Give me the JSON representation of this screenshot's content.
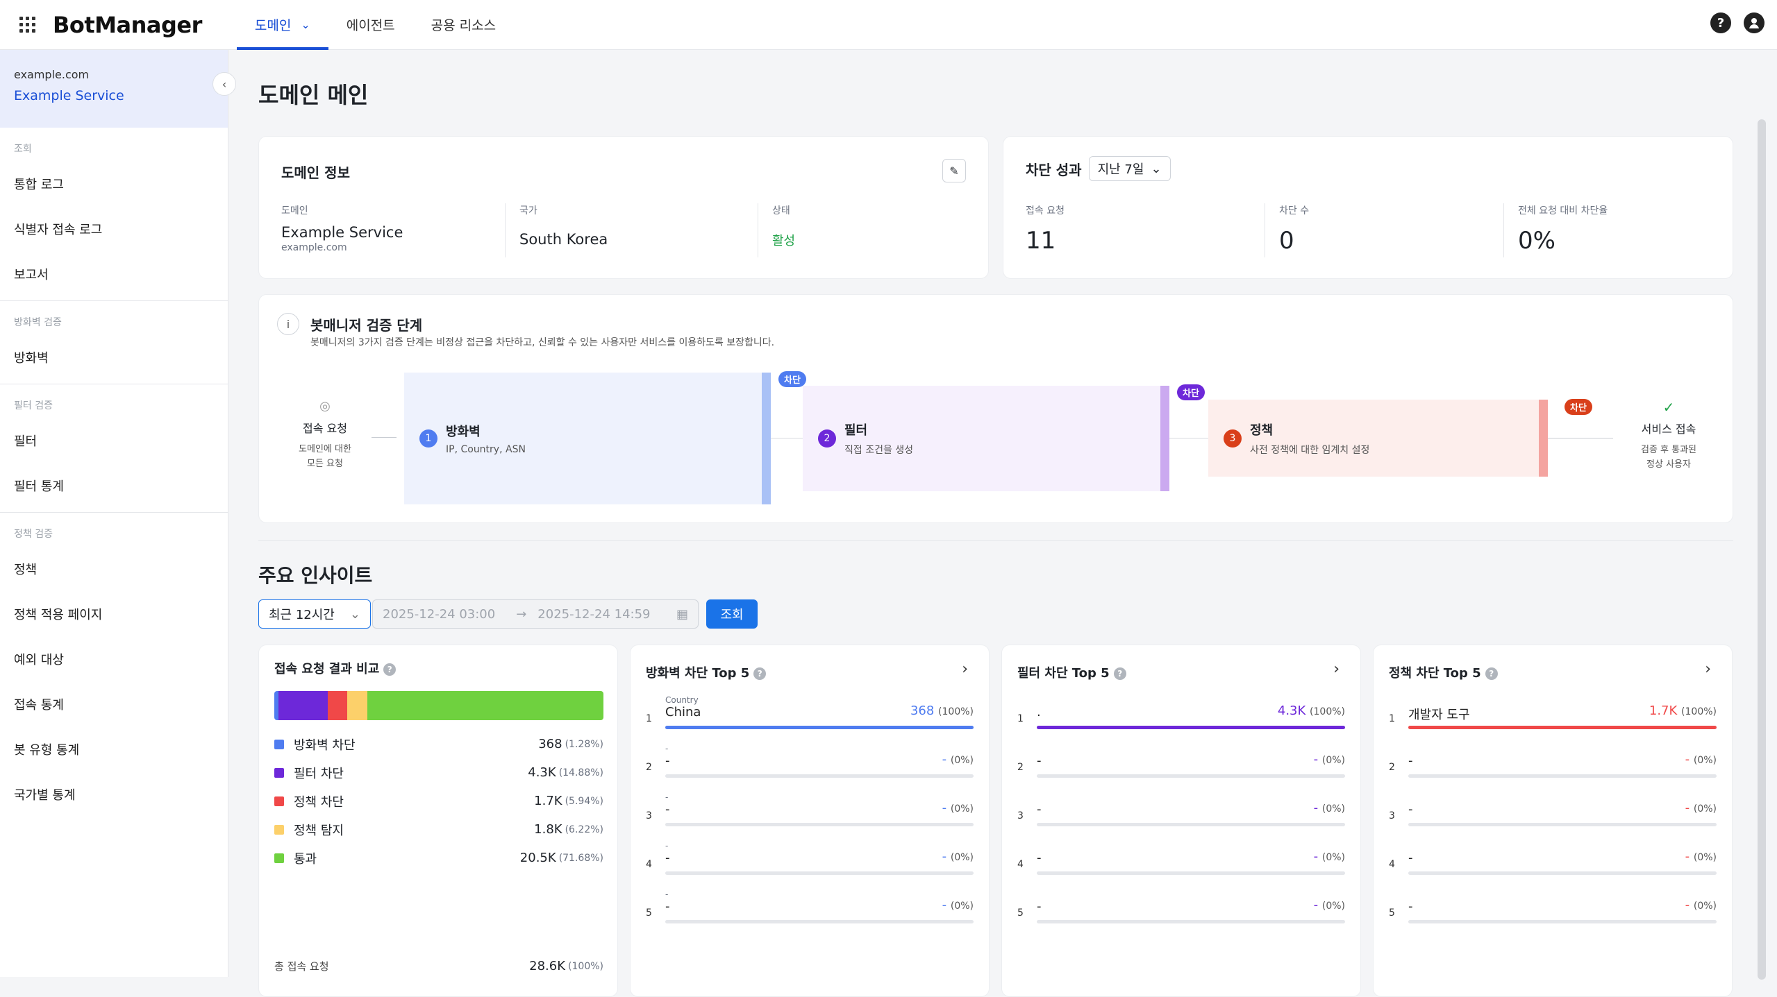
{
  "app": {
    "name": "BotManager"
  },
  "nav": {
    "tabs": [
      {
        "label": "도메인"
      },
      {
        "label": "에이전트"
      },
      {
        "label": "공용 리소스"
      }
    ]
  },
  "sidebar": {
    "domain": "example.com",
    "service": "Example Service",
    "sections": [
      {
        "title": "조회",
        "items": [
          "통합 로그",
          "식별자 접속 로그",
          "보고서"
        ]
      },
      {
        "title": "방화벽 검증",
        "items": [
          "방화벽"
        ]
      },
      {
        "title": "필터 검증",
        "items": [
          "필터",
          "필터 통계"
        ]
      },
      {
        "title": "정책 검증",
        "items": [
          "정책",
          "정책 적용 페이지",
          "예외 대상",
          "접속 통계",
          "봇 유형 통계",
          "국가별 통계"
        ]
      }
    ]
  },
  "page": {
    "title": "도메인 메인"
  },
  "domain_info": {
    "title": "도메인 정보",
    "domain_label": "도메인",
    "domain_name": "Example Service",
    "domain_host": "example.com",
    "country_label": "국가",
    "country": "South Korea",
    "status_label": "상태",
    "status": "활성",
    "status_color": "#22a34a"
  },
  "block_perf": {
    "title": "차단 성과",
    "period": "지난 7일",
    "metrics": [
      {
        "label": "접속 요청",
        "value": "11"
      },
      {
        "label": "차단 수",
        "value": "0"
      },
      {
        "label": "전체 요청 대비 차단율",
        "value": "0%"
      }
    ]
  },
  "flow": {
    "title": "봇매니저 검증 단계",
    "description": "봇매니저의 3가지 검증 단계는 비정상 접근을 차단하고, 신뢰할 수 있는 사용자만 서비스를 이용하도록 보장합니다.",
    "start": {
      "title": "접속 요청",
      "sub1": "도메인에 대한",
      "sub2": "모든 요청"
    },
    "end": {
      "title": "서비스 접속",
      "sub1": "검증 후 통과된",
      "sub2": "정상 사용자"
    },
    "block_label": "차단",
    "steps": [
      {
        "num": "1",
        "title": "방화벽",
        "sub": "IP, Country, ASN",
        "color": "#4f7cf0",
        "bg": "#eef2fd",
        "bar": "#a9c1f6"
      },
      {
        "num": "2",
        "title": "필터",
        "sub": "직접 조건을 생성",
        "color": "#6d28d9",
        "bg": "#f6f0fd",
        "bar": "#cba9f0"
      },
      {
        "num": "3",
        "title": "정책",
        "sub": "사전 정책에 대한 임계치 설정",
        "color": "#d93f1a",
        "bg": "#fdeeec",
        "bar": "#f4a4a0"
      }
    ]
  },
  "insights": {
    "title": "주요 인사이트",
    "range": "최근 12시간",
    "from": "2025-12-24 03:00",
    "to": "2025-12-24 14:59",
    "search": "조회"
  },
  "compare": {
    "title": "접속 요청 결과 비교",
    "items": [
      {
        "label": "방화벽 차단",
        "value": "368",
        "pct": "(1.28%)",
        "share": 1.28,
        "color": "#4f7cf0"
      },
      {
        "label": "필터 차단",
        "value": "4.3K",
        "pct": "(14.88%)",
        "share": 14.88,
        "color": "#6d28d9"
      },
      {
        "label": "정책 차단",
        "value": "1.7K",
        "pct": "(5.94%)",
        "share": 5.94,
        "color": "#f04848"
      },
      {
        "label": "정책 탐지",
        "value": "1.8K",
        "pct": "(6.22%)",
        "share": 6.22,
        "color": "#fcd06a"
      },
      {
        "label": "통과",
        "value": "20.5K",
        "pct": "(71.68%)",
        "share": 71.68,
        "color": "#6fd13f"
      }
    ],
    "total_label": "총 접속 요청",
    "total_value": "28.6K",
    "total_pct": "(100%)"
  },
  "top5": [
    {
      "title": "방화벽 차단 Top 5",
      "color": "#4f7cf0",
      "rows": [
        {
          "rank": "1",
          "sub": "Country",
          "name": "China",
          "value": "368",
          "pct": "(100%)",
          "fill": 1
        },
        {
          "rank": "2",
          "sub": "-",
          "name": "-",
          "value": "-",
          "pct": "(0%)",
          "fill": 0
        },
        {
          "rank": "3",
          "sub": "-",
          "name": "-",
          "value": "-",
          "pct": "(0%)",
          "fill": 0
        },
        {
          "rank": "4",
          "sub": "-",
          "name": "-",
          "value": "-",
          "pct": "(0%)",
          "fill": 0
        },
        {
          "rank": "5",
          "sub": "-",
          "name": "-",
          "value": "-",
          "pct": "(0%)",
          "fill": 0
        }
      ]
    },
    {
      "title": "필터 차단 Top 5",
      "color": "#6d28d9",
      "rows": [
        {
          "rank": "1",
          "sub": "",
          "name": ".",
          "value": "4.3K",
          "pct": "(100%)",
          "fill": 1
        },
        {
          "rank": "2",
          "sub": "",
          "name": "-",
          "value": "-",
          "pct": "(0%)",
          "fill": 0
        },
        {
          "rank": "3",
          "sub": "",
          "name": "-",
          "value": "-",
          "pct": "(0%)",
          "fill": 0
        },
        {
          "rank": "4",
          "sub": "",
          "name": "-",
          "value": "-",
          "pct": "(0%)",
          "fill": 0
        },
        {
          "rank": "5",
          "sub": "",
          "name": "-",
          "value": "-",
          "pct": "(0%)",
          "fill": 0
        }
      ]
    },
    {
      "title": "정책 차단 Top 5",
      "color": "#f04848",
      "rows": [
        {
          "rank": "1",
          "sub": "",
          "name": "개발자 도구",
          "value": "1.7K",
          "pct": "(100%)",
          "fill": 1
        },
        {
          "rank": "2",
          "sub": "",
          "name": "-",
          "value": "-",
          "pct": "(0%)",
          "fill": 0
        },
        {
          "rank": "3",
          "sub": "",
          "name": "-",
          "value": "-",
          "pct": "(0%)",
          "fill": 0
        },
        {
          "rank": "4",
          "sub": "",
          "name": "-",
          "value": "-",
          "pct": "(0%)",
          "fill": 0
        },
        {
          "rank": "5",
          "sub": "",
          "name": "-",
          "value": "-",
          "pct": "(0%)",
          "fill": 0
        }
      ]
    }
  ]
}
